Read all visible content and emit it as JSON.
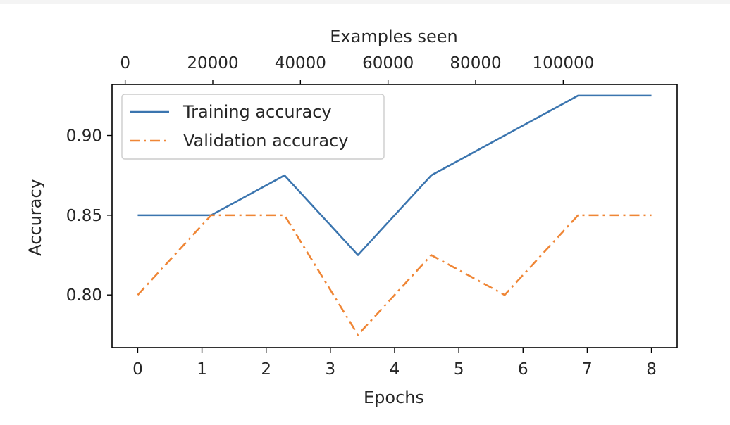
{
  "chart_data": {
    "type": "line",
    "xlabel": "Epochs",
    "x2label": "Examples seen",
    "ylabel": "Accuracy",
    "xlim": [
      -0.4,
      8.4
    ],
    "ylim": [
      0.767,
      0.932
    ],
    "x2lim": [
      -3000,
      126000
    ],
    "xticks": [
      0,
      1,
      2,
      3,
      4,
      5,
      6,
      7,
      8
    ],
    "x2ticks": [
      0,
      20000,
      40000,
      60000,
      80000,
      100000
    ],
    "yticks": [
      0.8,
      0.85,
      0.9
    ],
    "ytick_labels": [
      "0.80",
      "0.85",
      "0.90"
    ],
    "grid": false,
    "legend_position": "top-left",
    "series": [
      {
        "name": "Training accuracy",
        "color": "#3b75af",
        "style": "solid",
        "x": [
          0,
          1.143,
          2.286,
          3.429,
          4.571,
          5.714,
          6.857,
          8.0
        ],
        "values": [
          0.85,
          0.85,
          0.875,
          0.825,
          0.875,
          0.9,
          0.925,
          0.925
        ]
      },
      {
        "name": "Validation accuracy",
        "color": "#ef8636",
        "style": "dashdot",
        "x": [
          0,
          1.143,
          2.286,
          3.429,
          4.571,
          5.714,
          6.857,
          8.0
        ],
        "values": [
          0.8,
          0.85,
          0.85,
          0.775,
          0.825,
          0.8,
          0.85,
          0.85
        ]
      }
    ]
  }
}
